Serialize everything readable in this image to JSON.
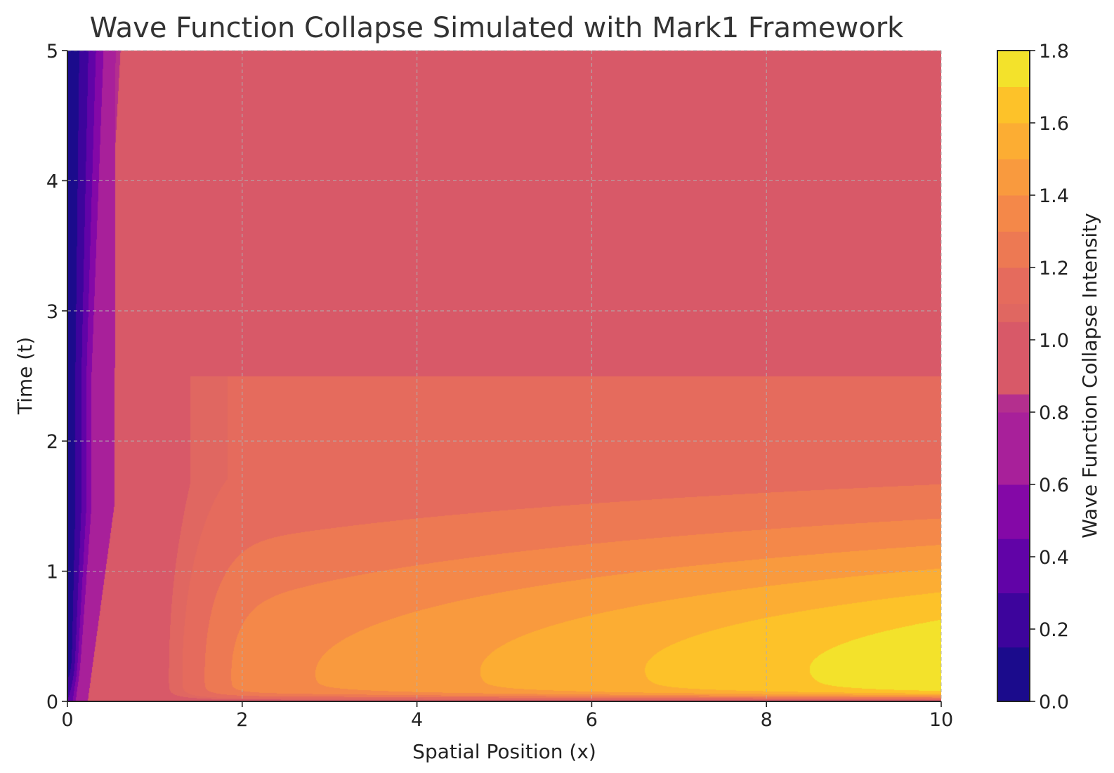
{
  "chart_data": {
    "type": "heatmap",
    "title": "Wave Function Collapse Simulated with Mark1 Framework",
    "xlabel": "Spatial Position (x)",
    "ylabel": "Time (t)",
    "xlim": [
      0,
      10
    ],
    "ylim": [
      0,
      5
    ],
    "xticks": [
      "0",
      "2",
      "4",
      "6",
      "8",
      "10"
    ],
    "yticks": [
      "0",
      "1",
      "2",
      "3",
      "4",
      "5"
    ],
    "grid": true,
    "colormap": "plasma",
    "colorbar": {
      "label": "Wave Function Collapse Intensity",
      "range": [
        0.0,
        1.8
      ],
      "ticks": [
        "0.0",
        "0.2",
        "0.4",
        "0.6",
        "0.8",
        "1.0",
        "1.2",
        "1.4",
        "1.6",
        "1.8"
      ],
      "colors": [
        {
          "from": 0.0,
          "to": 0.15,
          "color": "#1b0b8c"
        },
        {
          "from": 0.15,
          "to": 0.3,
          "color": "#3d049c"
        },
        {
          "from": 0.3,
          "to": 0.45,
          "color": "#6103a7"
        },
        {
          "from": 0.45,
          "to": 0.6,
          "color": "#8408a7"
        },
        {
          "from": 0.6,
          "to": 0.8,
          "color": "#a8209a"
        },
        {
          "from": 0.8,
          "to": 0.85,
          "color": "#b42f8e"
        },
        {
          "from": 0.85,
          "to": 1.05,
          "color": "#d85968"
        },
        {
          "from": 1.05,
          "to": 1.1,
          "color": "#e06761"
        },
        {
          "from": 1.1,
          "to": 1.2,
          "color": "#e56b5d"
        },
        {
          "from": 1.2,
          "to": 1.3,
          "color": "#ed7953"
        },
        {
          "from": 1.3,
          "to": 1.4,
          "color": "#f48849"
        },
        {
          "from": 1.4,
          "to": 1.5,
          "color": "#f99a3e"
        },
        {
          "from": 1.5,
          "to": 1.6,
          "color": "#fcad33"
        },
        {
          "from": 1.6,
          "to": 1.7,
          "color": "#fdc229"
        },
        {
          "from": 1.7,
          "to": 1.8,
          "color": "#f3e22b"
        }
      ]
    },
    "field_description": {
      "base_value": 1.0,
      "collapse_time": 2.5,
      "peak_value": 1.78
    }
  }
}
